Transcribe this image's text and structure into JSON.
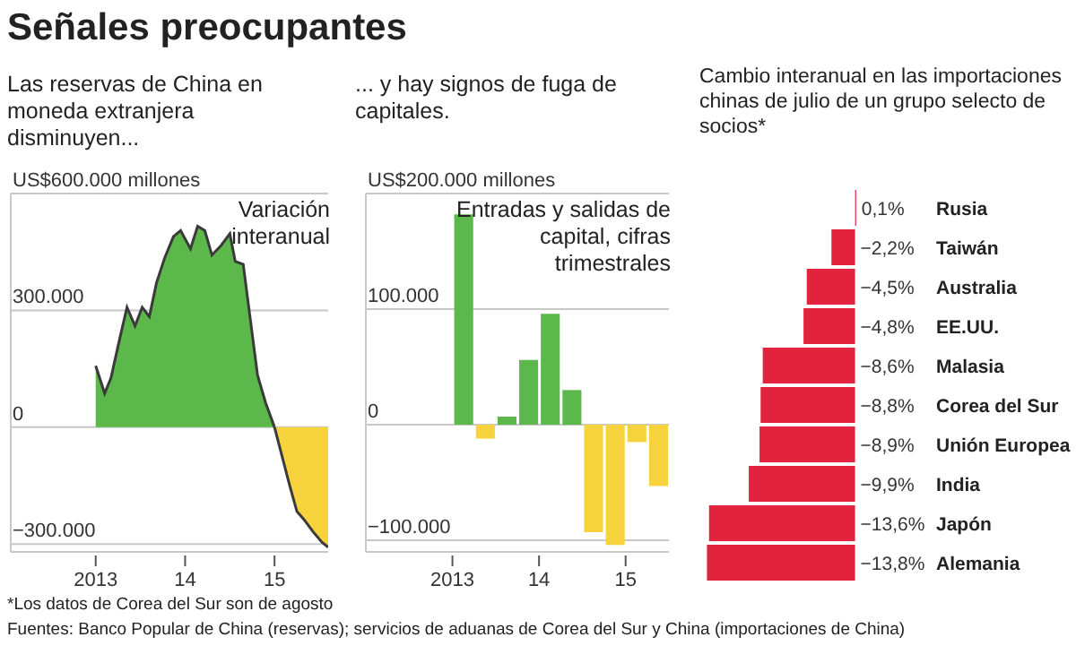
{
  "chart_data": [
    {
      "type": "area",
      "title": "Señales preocupantes",
      "subtitle": "Las reservas de China en moneda extranjera disminuyen...",
      "annotations": [
        "Variación interanual"
      ],
      "x": [
        2013.0,
        2013.1,
        2013.17,
        2013.27,
        2013.35,
        2013.44,
        2013.52,
        2013.6,
        2013.68,
        2013.77,
        2013.87,
        2013.95,
        2014.06,
        2014.14,
        2014.22,
        2014.3,
        2014.4,
        2014.5,
        2014.56,
        2014.65,
        2014.73,
        2014.81,
        2014.9,
        2015.0,
        2015.08,
        2015.17,
        2015.25,
        2015.33,
        2015.43,
        2015.53,
        2015.6
      ],
      "series": [
        {
          "color": "#5cb84a",
          "values": [
            158000,
            87000,
            126000,
            229000,
            308000,
            260000,
            308000,
            284000,
            371000,
            434000,
            490000,
            505000,
            458000,
            516000,
            505000,
            442000,
            466000,
            497000,
            426000,
            418000,
            276000,
            134000,
            63000,
            0,
            null,
            null,
            null,
            null,
            null,
            null,
            null
          ]
        },
        {
          "color": "#f6d33c",
          "values": [
            null,
            null,
            null,
            null,
            null,
            null,
            null,
            null,
            null,
            null,
            null,
            null,
            null,
            null,
            null,
            null,
            null,
            null,
            null,
            null,
            null,
            null,
            null,
            0,
            -71000,
            -150000,
            -216000,
            -237000,
            -268000,
            -295000,
            -308000
          ]
        }
      ],
      "xlim": [
        2012.05,
        2015.6
      ],
      "xticks": [
        {
          "value": 2013,
          "label": "2013"
        },
        {
          "value": 2014,
          "label": "14"
        },
        {
          "value": 2015,
          "label": "15"
        }
      ],
      "ylim": [
        -320000,
        600000
      ],
      "yticks": [
        {
          "value": -300000,
          "label": "−300.000"
        },
        {
          "value": 0,
          "label": "0"
        },
        {
          "value": 300000,
          "label": "300.000"
        },
        {
          "value": 600000,
          "label": "US$600.000 millones"
        }
      ],
      "grid": "y",
      "legend": false
    },
    {
      "type": "bar",
      "subtitle": "... y hay signos de fuga de capitales.",
      "annotations": [
        "Entradas y salidas de capital, cifras trimestrales"
      ],
      "x": [
        2013.125,
        2013.375,
        2013.625,
        2013.875,
        2014.125,
        2014.375,
        2014.625,
        2014.875,
        2015.125,
        2015.375
      ],
      "values": [
        182000,
        -12000,
        7000,
        56000,
        96000,
        30000,
        -93000,
        -104000,
        -15000,
        -53000
      ],
      "colors": [
        "#5cb84a",
        "#f6d33c",
        "#5cb84a",
        "#5cb84a",
        "#5cb84a",
        "#5cb84a",
        "#f6d33c",
        "#f6d33c",
        "#f6d33c",
        "#f6d33c"
      ],
      "xlim": [
        2012.0,
        2015.5
      ],
      "xticks": [
        {
          "value": 2013,
          "label": "2013"
        },
        {
          "value": 2014,
          "label": "14"
        },
        {
          "value": 2015,
          "label": "15"
        }
      ],
      "ylim": [
        -110000,
        200000
      ],
      "yticks": [
        {
          "value": -100000,
          "label": "−100.000"
        },
        {
          "value": 0,
          "label": "0"
        },
        {
          "value": 100000,
          "label": "100.000"
        },
        {
          "value": 200000,
          "label": "US$200.000 millones"
        }
      ],
      "grid": "y",
      "legend": false
    },
    {
      "type": "bar",
      "orientation": "horizontal",
      "title": "Cambio interanual en las importaciones chinas de julio de un grupo selecto de socios*",
      "categories": [
        "Rusia",
        "Taiwán",
        "Australia",
        "EE.UU.",
        "Malasia",
        "Corea del Sur",
        "Unión Europea",
        "India",
        "Japón",
        "Alemania"
      ],
      "values": [
        0.1,
        -2.2,
        -4.5,
        -4.8,
        -8.6,
        -8.8,
        -8.9,
        -9.9,
        -13.6,
        -13.8
      ],
      "value_labels": [
        "0,1%",
        "−2,2%",
        "−4,5%",
        "−4,8%",
        "−8,6%",
        "−8,8%",
        "−8,9%",
        "−9,9%",
        "−13,6%",
        "−13,8%"
      ],
      "color": "#e2233d",
      "xlim": [
        -14,
        0.2
      ],
      "grid": false,
      "legend": false,
      "annotations": [
        "*Los datos de Corea del Sur son de agosto",
        "Fuentes: Banco Popular de China (reservas); servicios de aduanas de Corea del Sur y China (importaciones de China)"
      ]
    }
  ]
}
